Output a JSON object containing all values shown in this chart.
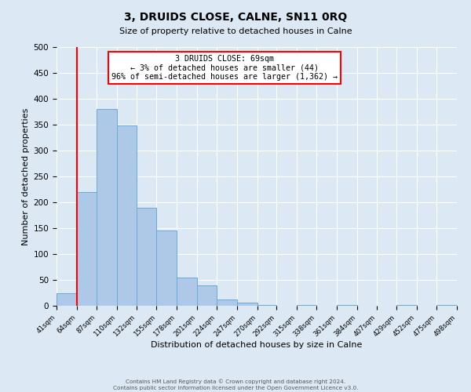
{
  "title": "3, DRUIDS CLOSE, CALNE, SN11 0RQ",
  "subtitle": "Size of property relative to detached houses in Calne",
  "xlabel": "Distribution of detached houses by size in Calne",
  "ylabel": "Number of detached properties",
  "bin_edges": [
    41,
    64,
    87,
    110,
    132,
    155,
    178,
    201,
    224,
    247,
    270,
    292,
    315,
    338,
    361,
    384,
    407,
    429,
    452,
    475,
    498
  ],
  "bin_labels": [
    "41sqm",
    "64sqm",
    "87sqm",
    "110sqm",
    "132sqm",
    "155sqm",
    "178sqm",
    "201sqm",
    "224sqm",
    "247sqm",
    "270sqm",
    "292sqm",
    "315sqm",
    "338sqm",
    "361sqm",
    "384sqm",
    "407sqm",
    "429sqm",
    "452sqm",
    "475sqm",
    "498sqm"
  ],
  "counts": [
    25,
    220,
    380,
    348,
    190,
    145,
    55,
    40,
    12,
    6,
    1,
    0,
    2,
    0,
    1,
    0,
    0,
    1,
    0,
    1
  ],
  "bar_color": "#aec9e8",
  "bar_edge_color": "#6aaad4",
  "red_line_x": 64,
  "annotation_text": "3 DRUIDS CLOSE: 69sqm\n← 3% of detached houses are smaller (44)\n96% of semi-detached houses are larger (1,362) →",
  "annotation_box_color": "white",
  "annotation_box_edge_color": "red",
  "ylim": [
    0,
    500
  ],
  "yticks": [
    0,
    50,
    100,
    150,
    200,
    250,
    300,
    350,
    400,
    450,
    500
  ],
  "background_color": "#dce9f5",
  "grid_color": "#ffffff",
  "footer_line1": "Contains HM Land Registry data © Crown copyright and database right 2024.",
  "footer_line2": "Contains public sector information licensed under the Open Government Licence v3.0."
}
